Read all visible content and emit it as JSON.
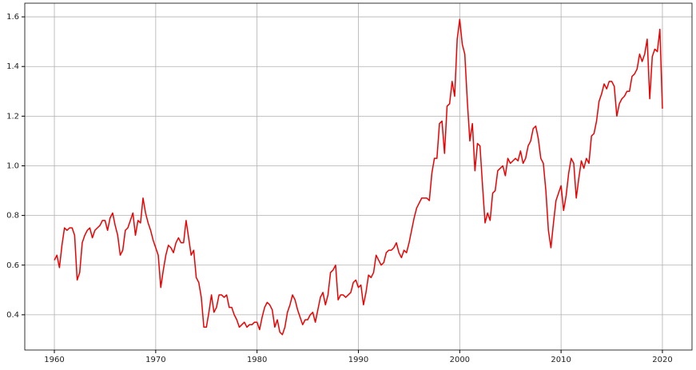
{
  "chart_data": {
    "type": "line",
    "x": [
      1960,
      1960.25,
      1960.5,
      1960.75,
      1961,
      1961.25,
      1961.5,
      1961.75,
      1962,
      1962.25,
      1962.5,
      1962.75,
      1963,
      1963.25,
      1963.5,
      1963.75,
      1964,
      1964.25,
      1964.5,
      1964.75,
      1965,
      1965.25,
      1965.5,
      1965.75,
      1966,
      1966.25,
      1966.5,
      1966.75,
      1967,
      1967.25,
      1967.5,
      1967.75,
      1968,
      1968.25,
      1968.5,
      1968.75,
      1969,
      1969.25,
      1969.5,
      1969.75,
      1970,
      1970.25,
      1970.5,
      1970.75,
      1971,
      1971.25,
      1971.5,
      1971.75,
      1972,
      1972.25,
      1972.5,
      1972.75,
      1973,
      1973.25,
      1973.5,
      1973.75,
      1974,
      1974.25,
      1974.5,
      1974.75,
      1975,
      1975.25,
      1975.5,
      1975.75,
      1976,
      1976.25,
      1976.5,
      1976.75,
      1977,
      1977.25,
      1977.5,
      1977.75,
      1978,
      1978.25,
      1978.5,
      1978.75,
      1979,
      1979.25,
      1979.5,
      1979.75,
      1980,
      1980.25,
      1980.5,
      1980.75,
      1981,
      1981.25,
      1981.5,
      1981.75,
      1982,
      1982.25,
      1982.5,
      1982.75,
      1983,
      1983.25,
      1983.5,
      1983.75,
      1984,
      1984.25,
      1984.5,
      1984.75,
      1985,
      1985.25,
      1985.5,
      1985.75,
      1986,
      1986.25,
      1986.5,
      1986.75,
      1987,
      1987.25,
      1987.5,
      1987.75,
      1988,
      1988.25,
      1988.5,
      1988.75,
      1989,
      1989.25,
      1989.5,
      1989.75,
      1990,
      1990.25,
      1990.5,
      1990.75,
      1991,
      1991.25,
      1991.5,
      1991.75,
      1992,
      1992.25,
      1992.5,
      1992.75,
      1993,
      1993.25,
      1993.5,
      1993.75,
      1994,
      1994.25,
      1994.5,
      1994.75,
      1995,
      1995.25,
      1995.5,
      1995.75,
      1996,
      1996.25,
      1996.5,
      1996.75,
      1997,
      1997.25,
      1997.5,
      1997.75,
      1998,
      1998.25,
      1998.5,
      1998.75,
      1999,
      1999.25,
      1999.5,
      1999.75,
      2000,
      2000.25,
      2000.5,
      2000.75,
      2001,
      2001.25,
      2001.5,
      2001.75,
      2002,
      2002.25,
      2002.5,
      2002.75,
      2003,
      2003.25,
      2003.5,
      2003.75,
      2004,
      2004.25,
      2004.5,
      2004.75,
      2005,
      2005.25,
      2005.5,
      2005.75,
      2006,
      2006.25,
      2006.5,
      2006.75,
      2007,
      2007.25,
      2007.5,
      2007.75,
      2008,
      2008.25,
      2008.5,
      2008.75,
      2009,
      2009.25,
      2009.5,
      2009.75,
      2010,
      2010.25,
      2010.5,
      2010.75,
      2011,
      2011.25,
      2011.5,
      2011.75,
      2012,
      2012.25,
      2012.5,
      2012.75,
      2013,
      2013.25,
      2013.5,
      2013.75,
      2014,
      2014.25,
      2014.5,
      2014.75,
      2015,
      2015.25,
      2015.5,
      2015.75,
      2016,
      2016.25,
      2016.5,
      2016.75,
      2017,
      2017.25,
      2017.5,
      2017.75,
      2018,
      2018.25,
      2018.5,
      2018.75,
      2019,
      2019.25,
      2019.5,
      2019.75,
      2020
    ],
    "series": [
      {
        "color": "#ee0000",
        "values": [
          0.62,
          0.64,
          0.59,
          0.68,
          0.75,
          0.74,
          0.75,
          0.75,
          0.72,
          0.54,
          0.57,
          0.69,
          0.72,
          0.74,
          0.75,
          0.71,
          0.74,
          0.75,
          0.76,
          0.78,
          0.78,
          0.74,
          0.79,
          0.81,
          0.76,
          0.72,
          0.64,
          0.66,
          0.74,
          0.75,
          0.78,
          0.81,
          0.72,
          0.78,
          0.77,
          0.87,
          0.81,
          0.77,
          0.74,
          0.7,
          0.67,
          0.64,
          0.51,
          0.58,
          0.64,
          0.68,
          0.67,
          0.65,
          0.69,
          0.71,
          0.69,
          0.69,
          0.78,
          0.71,
          0.64,
          0.66,
          0.55,
          0.53,
          0.47,
          0.35,
          0.35,
          0.41,
          0.48,
          0.41,
          0.43,
          0.48,
          0.48,
          0.47,
          0.48,
          0.43,
          0.43,
          0.4,
          0.38,
          0.35,
          0.36,
          0.37,
          0.35,
          0.36,
          0.36,
          0.37,
          0.37,
          0.34,
          0.39,
          0.43,
          0.45,
          0.44,
          0.42,
          0.35,
          0.38,
          0.33,
          0.32,
          0.35,
          0.41,
          0.44,
          0.48,
          0.46,
          0.42,
          0.39,
          0.36,
          0.38,
          0.38,
          0.4,
          0.41,
          0.37,
          0.42,
          0.47,
          0.49,
          0.44,
          0.48,
          0.57,
          0.58,
          0.6,
          0.46,
          0.48,
          0.48,
          0.47,
          0.48,
          0.49,
          0.53,
          0.54,
          0.51,
          0.52,
          0.44,
          0.49,
          0.56,
          0.55,
          0.57,
          0.64,
          0.62,
          0.6,
          0.61,
          0.65,
          0.66,
          0.66,
          0.67,
          0.69,
          0.65,
          0.63,
          0.66,
          0.65,
          0.69,
          0.74,
          0.79,
          0.83,
          0.85,
          0.87,
          0.87,
          0.87,
          0.86,
          0.97,
          1.03,
          1.03,
          1.17,
          1.18,
          1.05,
          1.24,
          1.25,
          1.34,
          1.28,
          1.51,
          1.59,
          1.49,
          1.45,
          1.26,
          1.1,
          1.17,
          0.98,
          1.09,
          1.08,
          0.92,
          0.77,
          0.81,
          0.78,
          0.89,
          0.9,
          0.98,
          0.99,
          1.0,
          0.96,
          1.03,
          1.01,
          1.02,
          1.03,
          1.02,
          1.06,
          1.01,
          1.03,
          1.08,
          1.1,
          1.15,
          1.16,
          1.11,
          1.03,
          1.01,
          0.9,
          0.74,
          0.67,
          0.77,
          0.86,
          0.89,
          0.92,
          0.82,
          0.88,
          0.97,
          1.03,
          1.01,
          0.87,
          0.95,
          1.02,
          0.99,
          1.03,
          1.01,
          1.12,
          1.13,
          1.18,
          1.26,
          1.29,
          1.33,
          1.31,
          1.34,
          1.34,
          1.32,
          1.2,
          1.25,
          1.27,
          1.28,
          1.3,
          1.3,
          1.36,
          1.37,
          1.39,
          1.45,
          1.42,
          1.45,
          1.51,
          1.27,
          1.44,
          1.47,
          1.46,
          1.55,
          1.23
        ]
      }
    ],
    "xlim": [
      1957.08,
      2022.92
    ],
    "ylim": [
      0.258,
      1.655
    ],
    "xticks": [
      1960,
      1970,
      1980,
      1990,
      2000,
      2010,
      2020
    ],
    "yticks": [
      0.4,
      0.6,
      0.8,
      {
        "value": 1,
        "label": "1.0"
      },
      1.2,
      1.4,
      1.6
    ],
    "grid": true
  }
}
